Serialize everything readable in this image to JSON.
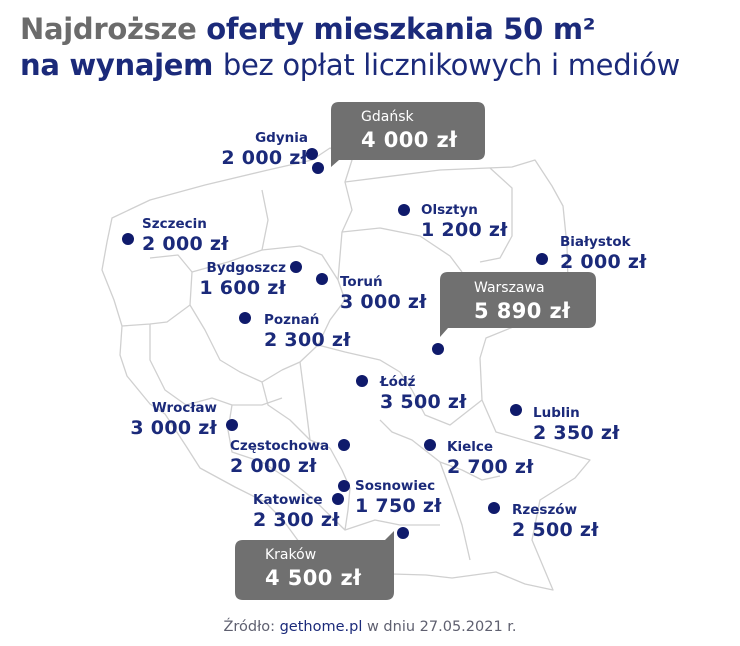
{
  "title": {
    "line1_gray": "Najdroższe",
    "line1_blue": "oferty mieszkania 50 m²",
    "line2_blue": "na wynajem",
    "line2_light": "bez opłat licznikowych i mediów"
  },
  "colors": {
    "accent": "#1b2a7a",
    "dot": "#0f1a6b",
    "callout": "#707070",
    "border": "#cfcfcf"
  },
  "cities": [
    {
      "id": "gdansk",
      "name": "Gdańsk",
      "price": "4 000 zł",
      "highlight": true
    },
    {
      "id": "gdynia",
      "name": "Gdynia",
      "price": "2 000 zł"
    },
    {
      "id": "szczecin",
      "name": "Szczecin",
      "price": "2 000 zł"
    },
    {
      "id": "olsztyn",
      "name": "Olsztyn",
      "price": "1 200 zł"
    },
    {
      "id": "bialystok",
      "name": "Białystok",
      "price": "2 000 zł"
    },
    {
      "id": "bydgoszcz",
      "name": "Bydgoszcz",
      "price": "1 600 zł"
    },
    {
      "id": "torun",
      "name": "Toruń",
      "price": "3 000 zł"
    },
    {
      "id": "warszawa",
      "name": "Warszawa",
      "price": "5 890 zł",
      "highlight": true
    },
    {
      "id": "poznan",
      "name": "Poznań",
      "price": "2 300 zł"
    },
    {
      "id": "lodz",
      "name": "Łódź",
      "price": "3 500 zł"
    },
    {
      "id": "wroclaw",
      "name": "Wrocław",
      "price": "3 000 zł"
    },
    {
      "id": "lublin",
      "name": "Lublin",
      "price": "2 350 zł"
    },
    {
      "id": "czestochowa",
      "name": "Częstochowa",
      "price": "2 000 zł"
    },
    {
      "id": "kielce",
      "name": "Kielce",
      "price": "2 700 zł"
    },
    {
      "id": "sosnowiec",
      "name": "Sosnowiec",
      "price": "1 750 zł"
    },
    {
      "id": "katowice",
      "name": "Katowice",
      "price": "2 300 zł"
    },
    {
      "id": "rzeszow",
      "name": "Rzeszów",
      "price": "2 500 zł"
    },
    {
      "id": "krakow",
      "name": "Kraków",
      "price": "4 500 zł",
      "highlight": true
    }
  ],
  "source": {
    "prefix": "Źródło:",
    "site": "gethome.pl",
    "suffix": "w dniu 27.05.2021 r."
  }
}
